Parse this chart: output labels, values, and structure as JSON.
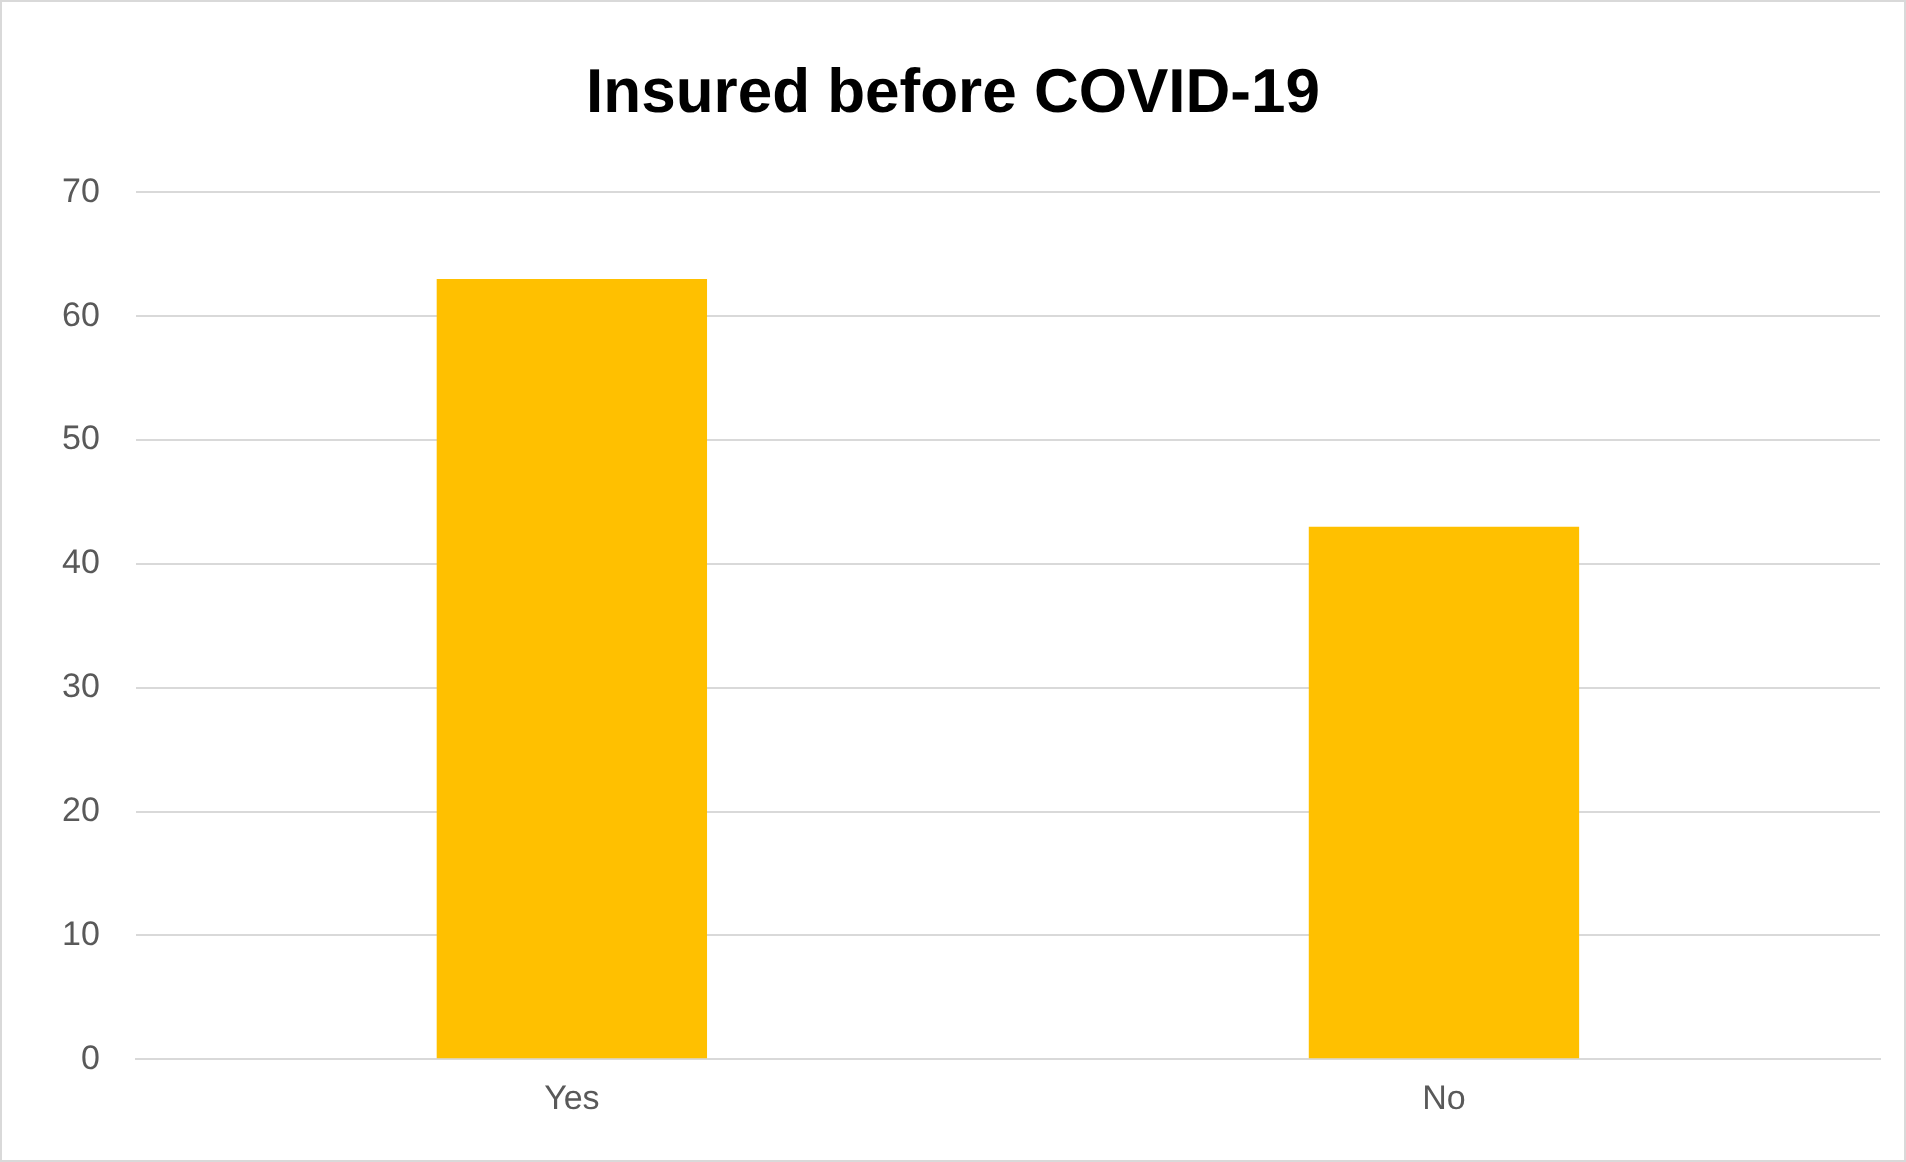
{
  "chart_data": {
    "type": "bar",
    "title": "Insured before COVID-19",
    "categories": [
      "Yes",
      "No"
    ],
    "values": [
      63,
      43
    ],
    "color": "#ffc000",
    "ylim": [
      0,
      70
    ],
    "yticks": [
      0,
      10,
      20,
      30,
      40,
      50,
      60,
      70
    ],
    "grid": "y",
    "legend": false
  }
}
